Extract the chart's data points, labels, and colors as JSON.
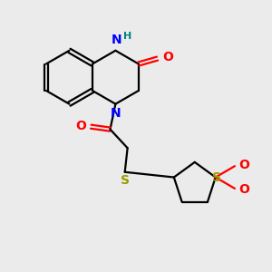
{
  "bg_color": "#ebebeb",
  "bond_color": "#000000",
  "N_color": "#0000ff",
  "O_color": "#ff0000",
  "S_color": "#999900",
  "H_color": "#008080",
  "line_width": 1.6,
  "font_size": 10,
  "small_font_size": 8,
  "xlim": [
    0,
    10
  ],
  "ylim": [
    0,
    10
  ]
}
